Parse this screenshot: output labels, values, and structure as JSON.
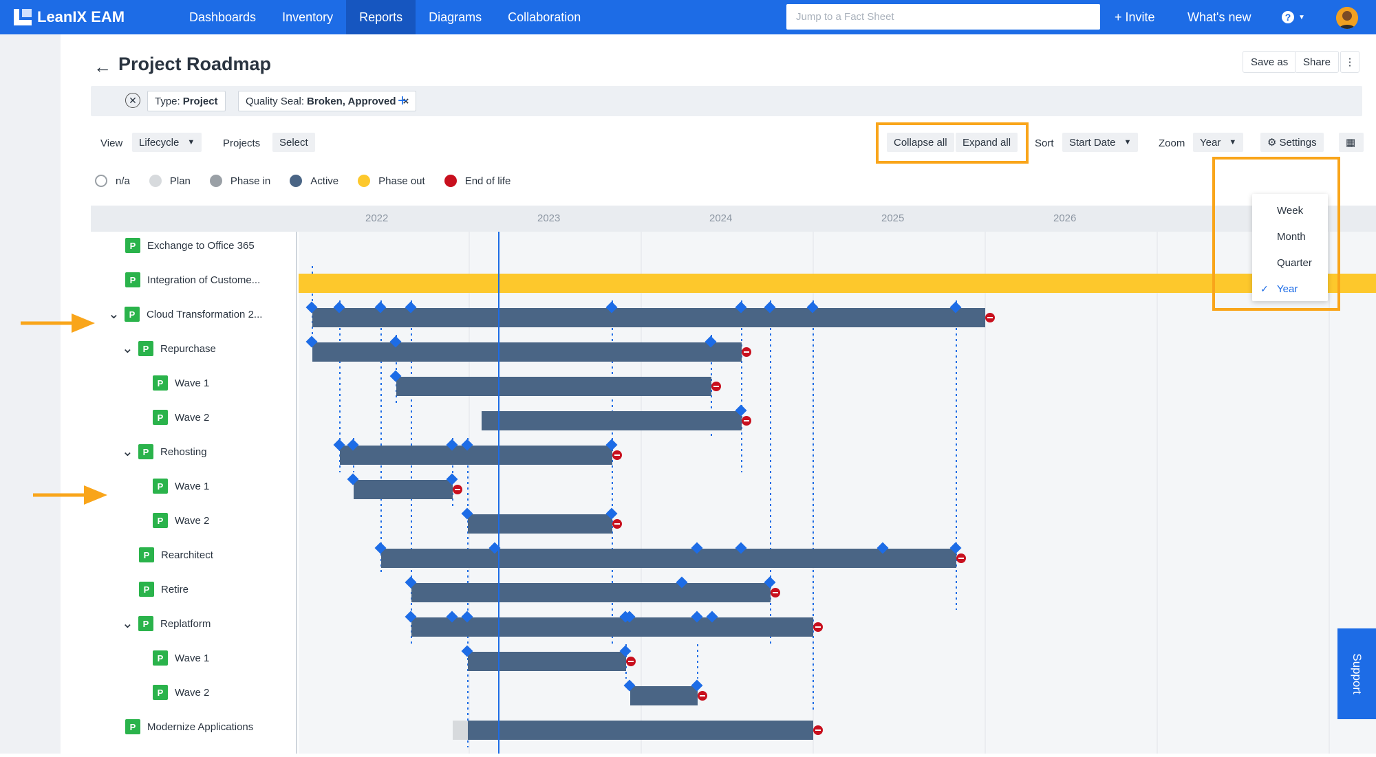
{
  "app": {
    "name": "LeanIX EAM"
  },
  "nav": {
    "items": [
      "Dashboards",
      "Inventory",
      "Reports",
      "Diagrams",
      "Collaboration"
    ],
    "active": "Reports"
  },
  "search": {
    "placeholder": "Jump to a Fact Sheet"
  },
  "top": {
    "invite": "+ Invite",
    "whatsnew": "What's new",
    "help_icon": "question-icon"
  },
  "page": {
    "title": "Project Roadmap",
    "save_as": "Save as",
    "share": "Share"
  },
  "filters": [
    {
      "key": "Type:",
      "value": "Project"
    },
    {
      "key": "Quality Seal:",
      "value": "Broken, Approved",
      "remove": "×"
    }
  ],
  "toolbar": {
    "view_label": "View",
    "view_value": "Lifecycle",
    "projects_label": "Projects",
    "projects_value": "Select",
    "collapse_all": "Collapse all",
    "expand_all": "Expand all",
    "sort_label": "Sort",
    "sort_value": "Start Date",
    "zoom_label": "Zoom",
    "zoom_value": "Year",
    "settings": "Settings"
  },
  "legend": [
    {
      "label": "n/a",
      "color": "#ffffff"
    },
    {
      "label": "Plan",
      "color": "#d7dadd"
    },
    {
      "label": "Phase in",
      "color": "#9aa0a6"
    },
    {
      "label": "Active",
      "color": "#4a6585"
    },
    {
      "label": "Phase out",
      "color": "#fdc82c"
    },
    {
      "label": "End of life",
      "color": "#c8101e"
    }
  ],
  "zoom_options": [
    "Week",
    "Month",
    "Quarter",
    "Year"
  ],
  "zoom_selected": "Year",
  "timeline": {
    "years": [
      "2022",
      "2023",
      "2024",
      "2025",
      "2026"
    ]
  },
  "rows": [
    {
      "label": "Exchange to Office 365",
      "badge": "P"
    },
    {
      "label": "Integration of Custome...",
      "badge": "P"
    },
    {
      "label": "Cloud Transformation 2...",
      "badge": "P"
    },
    {
      "label": "Repurchase",
      "badge": "P"
    },
    {
      "label": "Wave 1",
      "badge": "P"
    },
    {
      "label": "Wave 2",
      "badge": "P"
    },
    {
      "label": "Rehosting",
      "badge": "P"
    },
    {
      "label": "Wave 1",
      "badge": "P"
    },
    {
      "label": "Wave 2",
      "badge": "P"
    },
    {
      "label": "Rearchitect",
      "badge": "P"
    },
    {
      "label": "Retire",
      "badge": "P"
    },
    {
      "label": "Replatform",
      "badge": "P"
    },
    {
      "label": "Wave 1",
      "badge": "P"
    },
    {
      "label": "Wave 2",
      "badge": "P"
    },
    {
      "label": "Modernize Applications",
      "badge": "P"
    }
  ],
  "support": "Support",
  "colors": {
    "brand": "#1d6ce6",
    "highlight": "#f9a51a",
    "bar": "#4a6585",
    "phaseout": "#fdc82c",
    "eol": "#c8101e"
  }
}
